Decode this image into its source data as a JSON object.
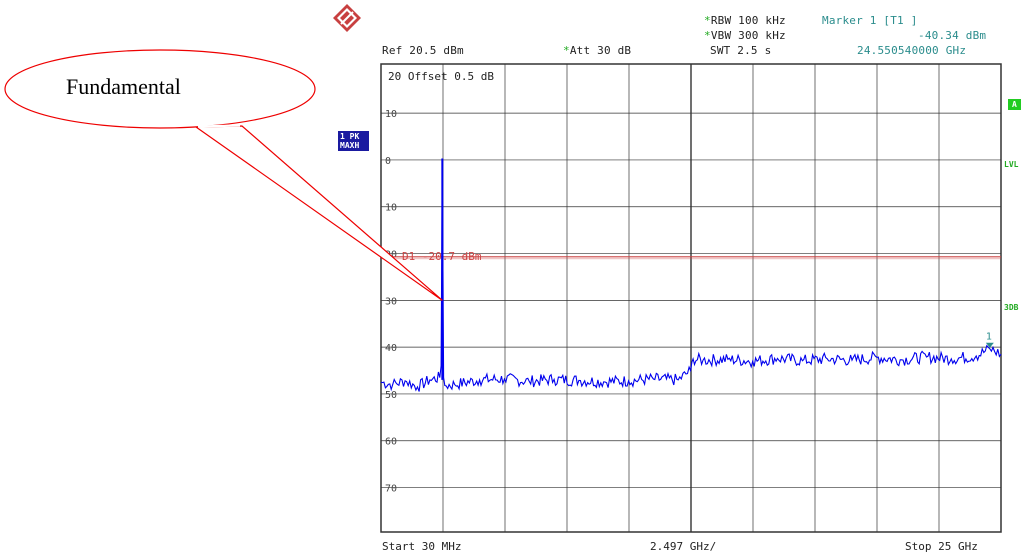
{
  "header": {
    "ref": "Ref  20.5 dBm",
    "att": "Att  30 dB",
    "rbw": "RBW 100 kHz",
    "vbw": "VBW 300 kHz",
    "swt": "SWT 2.5 s",
    "marker_title": "Marker 1 [T1 ]",
    "marker_level": "-40.34 dBm",
    "marker_freq": "24.550540000 GHz",
    "star": "*"
  },
  "trace_badges": {
    "trace": "1 PK",
    "mode": "MAXH"
  },
  "right_flags": {
    "a": "A",
    "lvl": "LVL",
    "db": "3DB"
  },
  "offset_text": "20  Offset  0.5 dB",
  "display_line_label": "D1  -20.7 dBm",
  "marker_number": "1",
  "callout_text": "Fundamental",
  "footer": {
    "start": "Start 30 MHz",
    "span_div": "2.497 GHz/",
    "stop": "Stop 25 GHz"
  },
  "colors": {
    "trace": "#0000ee",
    "display_line": "#cc4444",
    "grid": "#333333",
    "callout": "#ee0000",
    "marker": "#2a8c8c",
    "flag_bg": "#22cc22"
  },
  "chart_data": {
    "type": "line",
    "xlabel": "",
    "ylabel": "",
    "x_unit": "GHz",
    "y_unit": "dBm",
    "xlim": [
      0.03,
      25.0
    ],
    "ylim": [
      -79.5,
      20.5
    ],
    "y_ticks": [
      10,
      0,
      -10,
      -20,
      -30,
      -40,
      -50,
      -60,
      -70
    ],
    "grid": true,
    "display_line": {
      "name": "D1",
      "value": -20.7
    },
    "marker": {
      "name": "1",
      "x": 24.55054,
      "y": -40.34
    },
    "series": [
      {
        "x": [
          0.03,
          0.5,
          1.0,
          1.5,
          2.0,
          2.4,
          2.45,
          2.5,
          2.55,
          2.6,
          3.0,
          4.0,
          5.0,
          6.0,
          7.0,
          8.0,
          9.0,
          10.0,
          11.0,
          12.0,
          12.5,
          12.6,
          13.0,
          14.0,
          15.0,
          16.0,
          17.0,
          18.0,
          19.0,
          20.0,
          21.0,
          22.0,
          23.0,
          24.0,
          24.55,
          25.0
        ],
        "y": [
          -47.5,
          -48.0,
          -47.2,
          -48.5,
          -47.0,
          -46.5,
          -44.0,
          0.3,
          -46.5,
          -48.2,
          -48.0,
          -47.0,
          -46.8,
          -47.3,
          -46.9,
          -47.1,
          -47.4,
          -47.2,
          -46.8,
          -47.0,
          -45.0,
          -42.5,
          -42.8,
          -42.6,
          -43.0,
          -42.4,
          -42.9,
          -42.5,
          -42.8,
          -42.2,
          -42.7,
          -42.1,
          -42.5,
          -41.9,
          -40.34,
          -41.5
        ]
      }
    ]
  }
}
